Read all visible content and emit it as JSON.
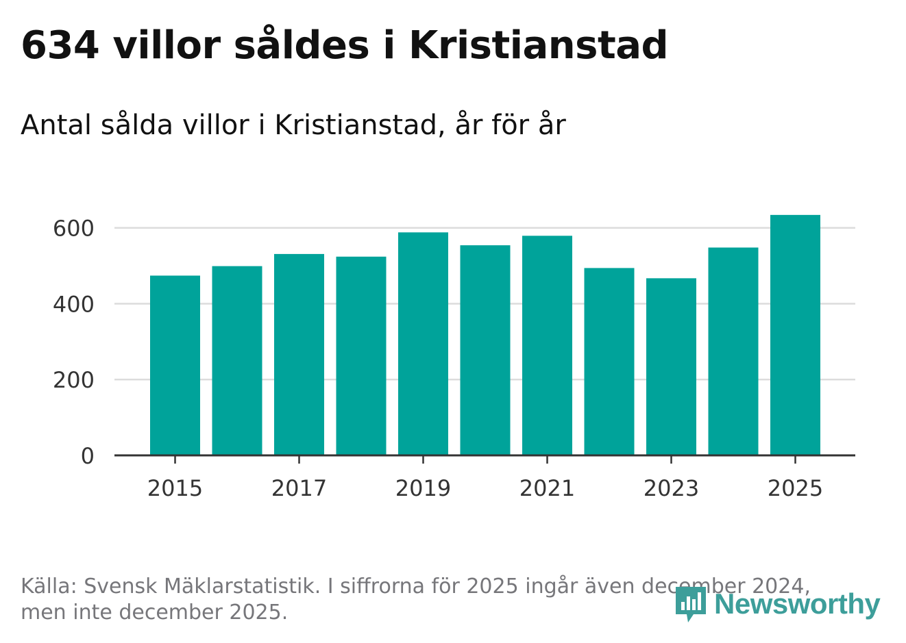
{
  "header": {
    "title": "634 villor såldes i Kristianstad",
    "subtitle": "Antal sålda villor i Kristianstad, år för år"
  },
  "footer": {
    "source_line1": "Källa: Svensk Mäklarstatistik. I siffrorna för 2025 ingår även december 2024,",
    "source_line2": "men inte december 2025.",
    "logo_text": "Newsworthy"
  },
  "colors": {
    "bar": "#00a39a",
    "grid": "#dcdcdc",
    "axis": "#333333",
    "logo": "#3d9e9a"
  },
  "chart_data": {
    "type": "bar",
    "title": "634 villor såldes i Kristianstad",
    "subtitle": "Antal sålda villor i Kristianstad, år för år",
    "xlabel": "",
    "ylabel": "",
    "categories": [
      "2015",
      "2016",
      "2017",
      "2018",
      "2019",
      "2020",
      "2021",
      "2022",
      "2023",
      "2024",
      "2025"
    ],
    "values": [
      474,
      499,
      531,
      524,
      588,
      554,
      579,
      494,
      467,
      548,
      634
    ],
    "x_tick_labels": [
      "2015",
      "2017",
      "2019",
      "2021",
      "2023",
      "2025"
    ],
    "y_ticks": [
      0,
      200,
      400,
      600
    ],
    "ylim": [
      0,
      650
    ],
    "grid": true,
    "legend": "none"
  }
}
